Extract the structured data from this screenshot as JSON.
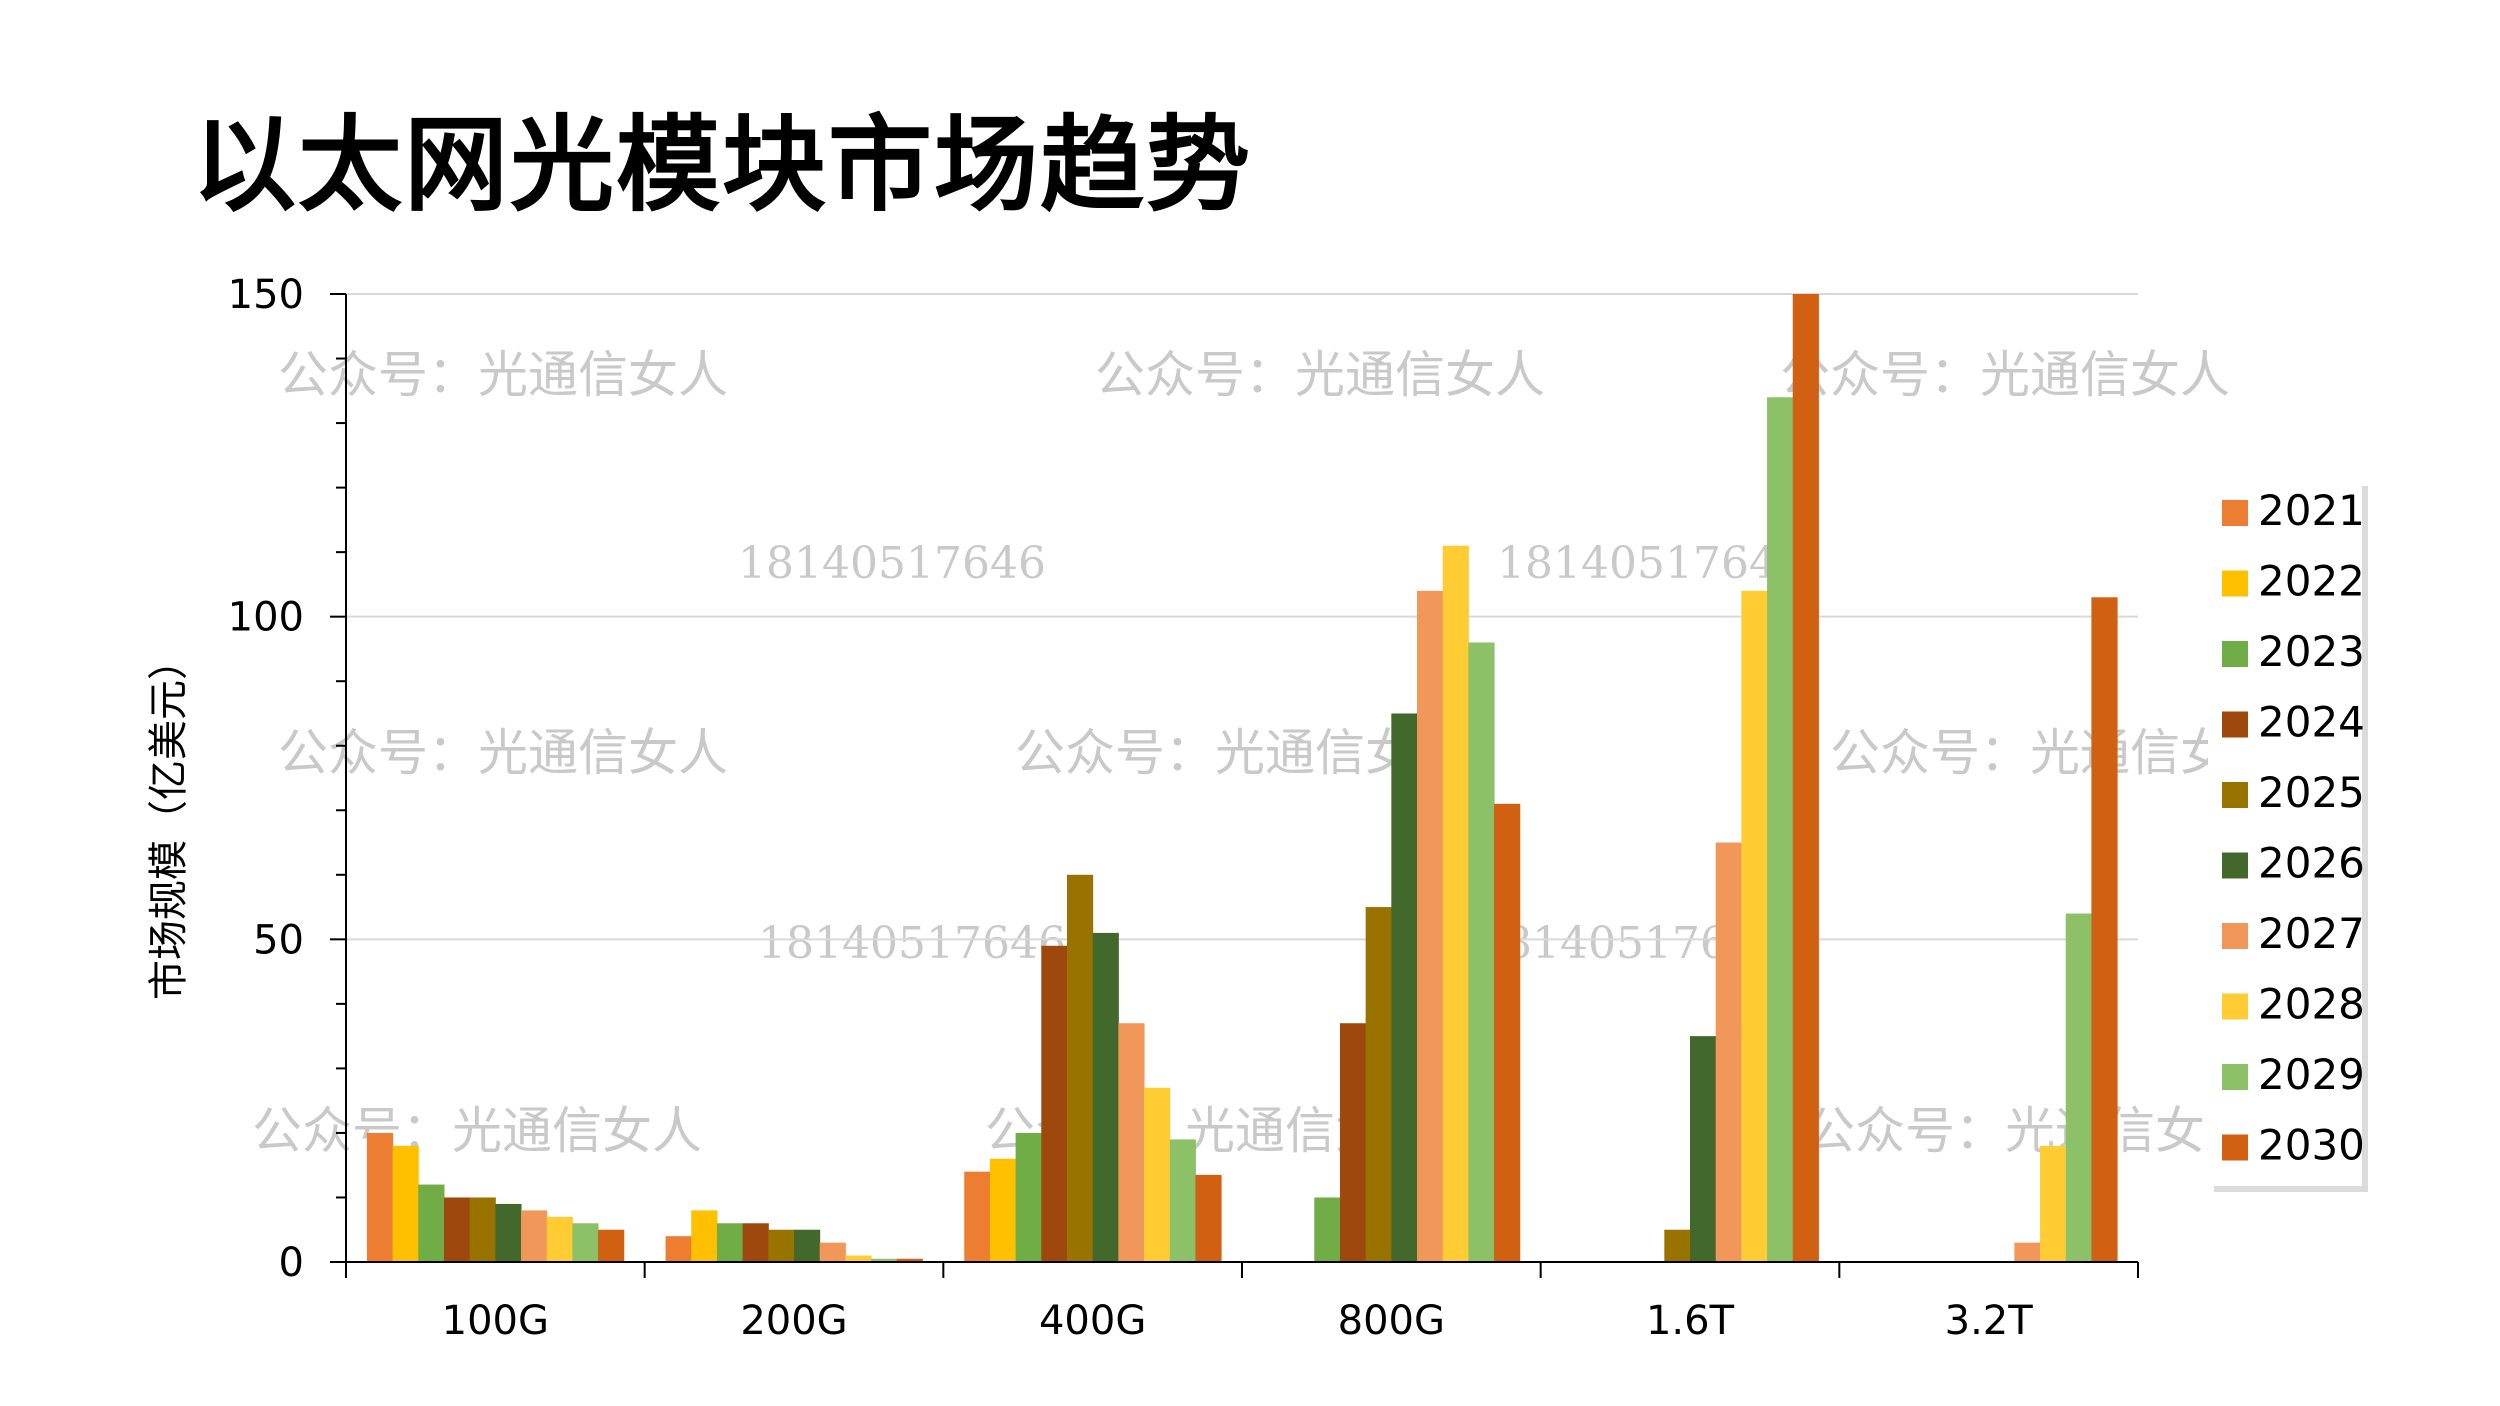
{
  "page": {
    "title": "以太网光模块市场趋势"
  },
  "watermarks": {
    "account": "公众号：光通信女人",
    "phone": "18140517646"
  },
  "colors": {
    "gridline": "#d9d9d9",
    "axis": "#000000",
    "watermark": "#c9c9c9"
  },
  "chart_data": {
    "type": "bar",
    "title": "以太网光模块市场趋势",
    "xlabel": "",
    "ylabel": "市场规模（亿美元）",
    "ylim": [
      0,
      150
    ],
    "yticks": [
      0,
      50,
      100,
      150
    ],
    "grid": true,
    "legend_position": "right",
    "categories": [
      "100G",
      "200G",
      "400G",
      "800G",
      "1.6T",
      "3.2T"
    ],
    "series": [
      {
        "name": "2021",
        "color": "#ed7d31",
        "values": [
          20,
          4,
          14,
          0,
          0,
          0
        ]
      },
      {
        "name": "2022",
        "color": "#ffc000",
        "values": [
          18,
          8,
          16,
          0,
          0,
          0
        ]
      },
      {
        "name": "2023",
        "color": "#70ad47",
        "values": [
          12,
          6,
          20,
          10,
          0,
          0
        ]
      },
      {
        "name": "2024",
        "color": "#9e480e",
        "values": [
          10,
          6,
          49,
          37,
          0,
          0
        ]
      },
      {
        "name": "2025",
        "color": "#997300",
        "values": [
          10,
          5,
          60,
          55,
          5,
          0
        ]
      },
      {
        "name": "2026",
        "color": "#43682b",
        "values": [
          9,
          5,
          51,
          85,
          35,
          0
        ]
      },
      {
        "name": "2027",
        "color": "#f1975a",
        "values": [
          8,
          3,
          37,
          104,
          65,
          3
        ]
      },
      {
        "name": "2028",
        "color": "#ffcd33",
        "values": [
          7,
          1,
          27,
          111,
          104,
          18
        ]
      },
      {
        "name": "2029",
        "color": "#8cc168",
        "values": [
          6,
          0.5,
          19,
          96,
          134,
          54
        ]
      },
      {
        "name": "2030",
        "color": "#d16012",
        "values": [
          5,
          0.5,
          13.5,
          71,
          150,
          103
        ]
      }
    ]
  }
}
